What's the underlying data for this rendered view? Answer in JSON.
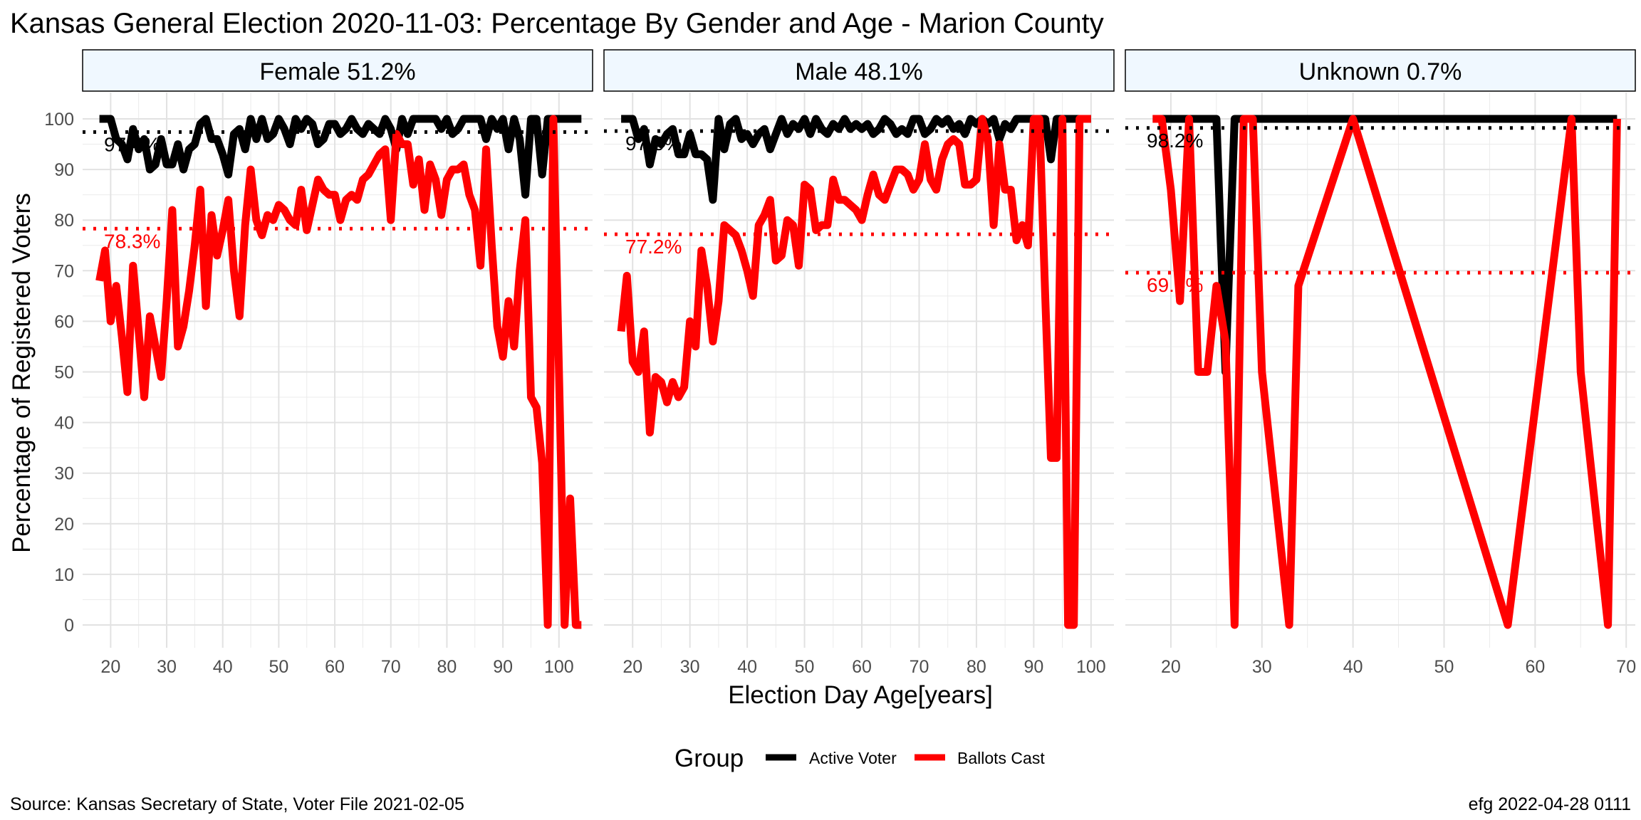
{
  "chart_data": {
    "type": "line",
    "title": "Kansas General Election 2020-11-03:  Percentage By Gender and Age - Marion County",
    "xlabel": "Election Day Age[years]",
    "ylabel": "Percentage of Registered Voters",
    "ylim": [
      0,
      100
    ],
    "yticks": [
      0,
      10,
      20,
      30,
      40,
      50,
      60,
      70,
      80,
      90,
      100
    ],
    "grid": true,
    "legend": {
      "title": "Group",
      "placement": "bottom",
      "entries": [
        {
          "label": "Active Voter",
          "color": "#000000"
        },
        {
          "label": "Ballots Cast",
          "color": "#ff0000"
        }
      ]
    },
    "caption_left": "Source:  Kansas Secretary of State, Voter File  2021-02-05",
    "caption_right": "efg 2022-04-28 0111",
    "panels": [
      {
        "label": "Female 51.2%",
        "xlim": [
          15,
          106
        ],
        "xticks": [
          20,
          30,
          40,
          50,
          60,
          70,
          80,
          90,
          100
        ],
        "active_mean": 97.4,
        "active_mean_label": "97.4%",
        "ballots_mean": 78.3,
        "ballots_mean_label": "78.3%",
        "series": [
          {
            "name": "Active Voter",
            "color": "#000000",
            "x": [
              18,
              19,
              20,
              21,
              22,
              23,
              24,
              25,
              26,
              27,
              28,
              29,
              30,
              31,
              32,
              33,
              34,
              35,
              36,
              37,
              38,
              39,
              40,
              41,
              42,
              43,
              44,
              45,
              46,
              47,
              48,
              49,
              50,
              51,
              52,
              53,
              54,
              55,
              56,
              57,
              58,
              59,
              60,
              61,
              62,
              63,
              64,
              65,
              66,
              67,
              68,
              69,
              70,
              71,
              72,
              73,
              74,
              75,
              76,
              77,
              78,
              79,
              80,
              81,
              82,
              83,
              84,
              85,
              86,
              87,
              88,
              89,
              90,
              91,
              92,
              93,
              94,
              95,
              96,
              97,
              98,
              99,
              100,
              101,
              102,
              103,
              104
            ],
            "y": [
              100,
              100,
              100,
              96,
              95,
              92,
              98,
              94,
              96,
              90,
              91,
              96,
              91,
              91,
              95,
              90,
              94,
              95,
              99,
              100,
              96,
              96,
              93,
              89,
              97,
              98,
              94,
              100,
              96,
              100,
              96,
              97,
              100,
              98,
              95,
              100,
              98,
              100,
              99,
              95,
              96,
              99,
              99,
              97,
              98,
              100,
              98,
              97,
              99,
              98,
              97,
              100,
              98,
              94,
              100,
              97,
              100,
              100,
              100,
              100,
              100,
              98,
              100,
              97,
              98,
              100,
              100,
              100,
              100,
              96,
              100,
              98,
              100,
              94,
              100,
              96,
              85,
              100,
              100,
              89,
              100,
              100,
              100,
              100,
              100,
              100,
              100
            ]
          },
          {
            "name": "Ballots Cast",
            "color": "#ff0000",
            "x": [
              18,
              19,
              20,
              21,
              22,
              23,
              24,
              25,
              26,
              27,
              28,
              29,
              30,
              31,
              32,
              33,
              34,
              35,
              36,
              37,
              38,
              39,
              40,
              41,
              42,
              43,
              44,
              45,
              46,
              47,
              48,
              49,
              50,
              51,
              52,
              53,
              54,
              55,
              56,
              57,
              58,
              59,
              60,
              61,
              62,
              63,
              64,
              65,
              66,
              67,
              68,
              69,
              70,
              71,
              72,
              73,
              74,
              75,
              76,
              77,
              78,
              79,
              80,
              81,
              82,
              83,
              84,
              85,
              86,
              87,
              88,
              89,
              90,
              91,
              92,
              93,
              94,
              95,
              96,
              97,
              98,
              99,
              100,
              101,
              102,
              103,
              104
            ],
            "y": [
              68,
              74,
              60,
              67,
              57,
              46,
              71,
              58,
              45,
              61,
              55,
              49,
              64,
              82,
              55,
              59,
              66,
              75,
              86,
              63,
              81,
              73,
              78,
              84,
              70,
              61,
              79,
              90,
              80,
              77,
              81,
              80,
              83,
              82,
              80,
              79,
              86,
              78,
              83,
              88,
              86,
              85,
              85,
              80,
              84,
              85,
              84,
              88,
              89,
              91,
              93,
              94,
              80,
              97,
              95,
              95,
              87,
              92,
              82,
              91,
              88,
              81,
              88,
              90,
              90,
              91,
              85,
              82,
              71,
              94,
              75,
              59,
              53,
              64,
              55,
              70,
              80,
              45,
              43,
              32,
              0,
              100,
              50,
              0,
              25,
              0,
              0
            ]
          }
        ]
      },
      {
        "label": "Male 48.1%",
        "xlim": [
          15,
          104
        ],
        "xticks": [
          20,
          30,
          40,
          50,
          60,
          70,
          80,
          90,
          100
        ],
        "active_mean": 97.6,
        "active_mean_label": "97.6%",
        "ballots_mean": 77.2,
        "ballots_mean_label": "77.2%",
        "series": [
          {
            "name": "Active Voter",
            "color": "#000000",
            "x": [
              18,
              19,
              20,
              21,
              22,
              23,
              24,
              25,
              26,
              27,
              28,
              29,
              30,
              31,
              32,
              33,
              34,
              35,
              36,
              37,
              38,
              39,
              40,
              41,
              42,
              43,
              44,
              45,
              46,
              47,
              48,
              49,
              50,
              51,
              52,
              53,
              54,
              55,
              56,
              57,
              58,
              59,
              60,
              61,
              62,
              63,
              64,
              65,
              66,
              67,
              68,
              69,
              70,
              71,
              72,
              73,
              74,
              75,
              76,
              77,
              78,
              79,
              80,
              81,
              82,
              83,
              84,
              85,
              86,
              87,
              88,
              89,
              90,
              91,
              92,
              93,
              94,
              95,
              96,
              97,
              98,
              99,
              100
            ],
            "y": [
              100,
              100,
              100,
              96,
              98,
              91,
              96,
              95,
              97,
              98,
              93,
              93,
              97,
              93,
              93,
              92,
              84,
              100,
              94,
              99,
              100,
              96,
              97,
              95,
              97,
              98,
              94,
              97,
              100,
              97,
              99,
              98,
              100,
              97,
              100,
              98,
              97,
              99,
              98,
              100,
              98,
              99,
              98,
              99,
              97,
              98,
              100,
              99,
              97,
              98,
              97,
              100,
              100,
              97,
              98,
              100,
              99,
              100,
              98,
              99,
              97,
              100,
              99,
              100,
              99,
              100,
              96,
              99,
              98,
              100,
              100,
              100,
              100,
              100,
              100,
              92,
              100,
              100,
              100,
              100,
              100,
              100,
              100
            ]
          },
          {
            "name": "Ballots Cast",
            "color": "#ff0000",
            "x": [
              18,
              19,
              20,
              21,
              22,
              23,
              24,
              25,
              26,
              27,
              28,
              29,
              30,
              31,
              32,
              33,
              34,
              35,
              36,
              37,
              38,
              39,
              40,
              41,
              42,
              43,
              44,
              45,
              46,
              47,
              48,
              49,
              50,
              51,
              52,
              53,
              54,
              55,
              56,
              57,
              58,
              59,
              60,
              61,
              62,
              63,
              64,
              65,
              66,
              67,
              68,
              69,
              70,
              71,
              72,
              73,
              74,
              75,
              76,
              77,
              78,
              79,
              80,
              81,
              82,
              83,
              84,
              85,
              86,
              87,
              88,
              89,
              90,
              91,
              92,
              93,
              94,
              95,
              96,
              97,
              98,
              99,
              100
            ],
            "y": [
              58,
              69,
              52,
              50,
              58,
              38,
              49,
              48,
              44,
              48,
              45,
              47,
              60,
              55,
              74,
              67,
              56,
              64,
              79,
              78,
              77,
              74,
              70,
              65,
              79,
              81,
              84,
              72,
              73,
              80,
              79,
              71,
              87,
              86,
              78,
              79,
              79,
              88,
              84,
              84,
              83,
              82,
              80,
              85,
              89,
              85,
              84,
              87,
              90,
              90,
              89,
              86,
              88,
              95,
              88,
              86,
              92,
              95,
              96,
              95,
              87,
              87,
              88,
              100,
              96,
              79,
              95,
              86,
              86,
              76,
              79,
              75,
              100,
              100,
              65,
              33,
              33,
              100,
              0,
              0,
              100,
              100,
              100
            ]
          }
        ]
      },
      {
        "label": "Unknown 0.7%",
        "xlim": [
          15,
          71
        ],
        "xticks": [
          20,
          30,
          40,
          50,
          60,
          70
        ],
        "active_mean": 98.2,
        "active_mean_label": "98.2%",
        "ballots_mean": 69.6,
        "ballots_mean_label": "69.6%",
        "series": [
          {
            "name": "Active Voter",
            "color": "#000000",
            "x": [
              18,
              19,
              20,
              21,
              22,
              23,
              24,
              25,
              26,
              27,
              28,
              29,
              30,
              33,
              34,
              40,
              57,
              64,
              65,
              68,
              69
            ],
            "y": [
              100,
              100,
              100,
              100,
              100,
              100,
              100,
              100,
              50,
              100,
              100,
              100,
              100,
              100,
              100,
              100,
              100,
              100,
              100,
              100,
              100
            ]
          },
          {
            "name": "Ballots Cast",
            "color": "#ff0000",
            "x": [
              18,
              19,
              20,
              21,
              22,
              23,
              24,
              25,
              26,
              27,
              28,
              29,
              30,
              33,
              34,
              40,
              57,
              64,
              65,
              68,
              69
            ],
            "y": [
              100,
              100,
              86,
              64,
              100,
              50,
              50,
              67,
              56,
              0,
              100,
              100,
              50,
              0,
              67,
              100,
              0,
              100,
              50,
              0,
              100
            ]
          }
        ]
      }
    ]
  }
}
